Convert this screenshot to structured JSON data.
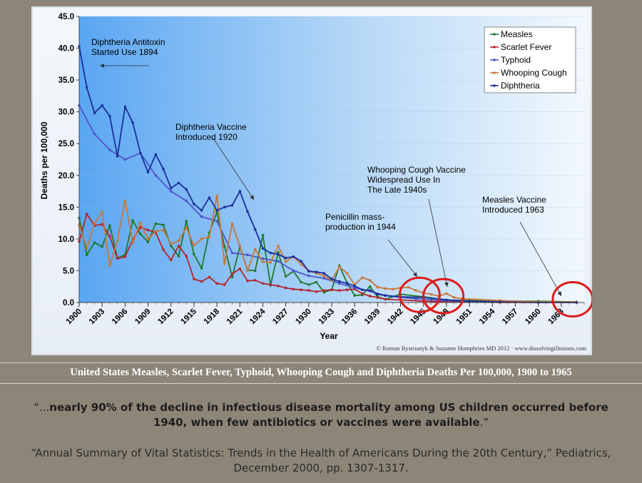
{
  "caption": "United States Measles, Scarlet Fever, Typhoid, Whooping Cough and Diphtheria Deaths Per 100,000, 1900 to 1965",
  "quote": {
    "open": "“...",
    "bold": "nearly 90% of the decline in infectious disease mortality among US children occurred before 1940, when few antibiotics or vaccines were available",
    "close": ".”"
  },
  "citation": "“Annual Summary of Vital Statistics: Trends in the Health of Americans During the 20th Century,” Pediatrics, December 2000, pp. 1307-1317.",
  "chart_data": {
    "type": "line",
    "ylabel": "Deaths per 100,000",
    "xlabel": "Year",
    "ylim": [
      0,
      45
    ],
    "xlim": [
      1900,
      1966
    ],
    "y_ticks": [
      "0.0",
      "5.0",
      "10.0",
      "15.0",
      "20.0",
      "25.0",
      "30.0",
      "35.0",
      "40.0",
      "45.0"
    ],
    "x_ticks": [
      "1900",
      "1903",
      "1906",
      "1909",
      "1912",
      "1915",
      "1918",
      "1921",
      "1924",
      "1927",
      "1930",
      "1933",
      "1936",
      "1939",
      "1942",
      "1945",
      "1948",
      "1951",
      "1954",
      "1957",
      "1960",
      "1963"
    ],
    "legend_position": "top-right",
    "credit": "© Roman Bystrianyk & Suzanne Humphries MD 2012 · www.dissolvingillusions.com",
    "series": [
      {
        "name": "Measles",
        "color": "#1e7a2e",
        "x": [
          1900,
          1901,
          1902,
          1903,
          1904,
          1905,
          1906,
          1907,
          1908,
          1909,
          1910,
          1911,
          1912,
          1913,
          1914,
          1915,
          1916,
          1917,
          1918,
          1919,
          1920,
          1921,
          1922,
          1923,
          1924,
          1925,
          1926,
          1927,
          1928,
          1929,
          1930,
          1931,
          1932,
          1933,
          1934,
          1935,
          1936,
          1937,
          1938,
          1939,
          1940,
          1942,
          1945,
          1948,
          1951,
          1955,
          1960,
          1965
        ],
        "y": [
          13.3,
          7.5,
          9.4,
          8.8,
          12.1,
          7.0,
          7.5,
          12.9,
          10.8,
          9.5,
          12.4,
          12.2,
          8.9,
          7.3,
          12.8,
          7.6,
          5.4,
          11.0,
          14.2,
          8.8,
          4.0,
          8.8,
          5.1,
          5.0,
          10.6,
          2.7,
          7.9,
          4.1,
          4.9,
          3.2,
          2.8,
          3.2,
          1.6,
          2.0,
          5.8,
          3.1,
          1.1,
          1.2,
          2.5,
          0.9,
          0.5,
          1.3,
          0.9,
          0.4,
          0.3,
          0.2,
          0.2,
          0.1
        ]
      },
      {
        "name": "Scarlet Fever",
        "color": "#b3262b",
        "x": [
          1900,
          1901,
          1902,
          1903,
          1904,
          1905,
          1906,
          1907,
          1908,
          1909,
          1910,
          1911,
          1912,
          1913,
          1914,
          1915,
          1916,
          1917,
          1918,
          1919,
          1920,
          1921,
          1922,
          1923,
          1924,
          1925,
          1926,
          1927,
          1928,
          1929,
          1930,
          1931,
          1932,
          1933,
          1934,
          1935,
          1936,
          1937,
          1938,
          1939,
          1940,
          1942,
          1945,
          1948,
          1951,
          1955,
          1960,
          1965
        ],
        "y": [
          9.6,
          13.9,
          12.1,
          12.3,
          10.4,
          6.9,
          7.2,
          9.9,
          11.8,
          11.4,
          11.0,
          8.3,
          6.7,
          8.9,
          7.3,
          3.7,
          3.3,
          4.0,
          3.0,
          2.8,
          4.5,
          5.3,
          3.4,
          3.5,
          3.0,
          2.8,
          2.6,
          2.3,
          2.1,
          2.0,
          1.9,
          1.7,
          1.9,
          2.0,
          1.9,
          2.0,
          2.1,
          1.4,
          1.0,
          0.8,
          0.5,
          0.4,
          0.2,
          0.1,
          0.1,
          0.0,
          0.0,
          0.0
        ]
      },
      {
        "name": "Typhoid",
        "color": "#4d55c8",
        "x": [
          1900,
          1902,
          1904,
          1906,
          1908,
          1910,
          1912,
          1914,
          1916,
          1918,
          1920,
          1922,
          1924,
          1926,
          1928,
          1930,
          1932,
          1934,
          1936,
          1938,
          1940,
          1942,
          1944,
          1946,
          1948,
          1950,
          1955,
          1960,
          1965
        ],
        "y": [
          31.0,
          26.5,
          24.0,
          22.5,
          23.5,
          20.0,
          17.5,
          16.0,
          13.5,
          12.8,
          7.8,
          7.5,
          6.9,
          6.5,
          5.0,
          4.2,
          3.8,
          3.0,
          2.3,
          1.8,
          1.1,
          0.8,
          0.6,
          0.4,
          0.3,
          0.2,
          0.1,
          0.0,
          0.0
        ]
      },
      {
        "name": "Whooping Cough",
        "color": "#c8773b",
        "x": [
          1900,
          1901,
          1902,
          1903,
          1904,
          1905,
          1906,
          1907,
          1908,
          1909,
          1910,
          1911,
          1912,
          1913,
          1914,
          1915,
          1916,
          1917,
          1918,
          1919,
          1920,
          1921,
          1922,
          1923,
          1924,
          1925,
          1926,
          1927,
          1928,
          1929,
          1930,
          1931,
          1932,
          1933,
          1934,
          1935,
          1936,
          1937,
          1938,
          1939,
          1940,
          1941,
          1942,
          1943,
          1944,
          1945,
          1946,
          1947,
          1948,
          1949,
          1950,
          1955,
          1960,
          1965
        ],
        "y": [
          12.2,
          8.5,
          12.5,
          14.2,
          5.8,
          9.7,
          16.0,
          9.4,
          12.5,
          10.0,
          11.2,
          11.4,
          9.2,
          9.7,
          11.8,
          9.0,
          10.0,
          10.3,
          16.8,
          6.1,
          12.4,
          8.9,
          5.0,
          8.4,
          6.4,
          6.3,
          8.9,
          6.4,
          7.2,
          6.0,
          5.0,
          4.6,
          4.2,
          3.5,
          5.6,
          4.6,
          2.8,
          3.9,
          3.5,
          2.4,
          2.2,
          2.1,
          2.3,
          2.4,
          1.9,
          1.5,
          1.3,
          1.0,
          1.4,
          0.8,
          0.6,
          0.3,
          0.1,
          0.1
        ]
      },
      {
        "name": "Diphtheria",
        "color": "#1b2e9a",
        "x": [
          1900,
          1901,
          1902,
          1903,
          1904,
          1905,
          1906,
          1907,
          1908,
          1909,
          1910,
          1911,
          1912,
          1913,
          1914,
          1915,
          1916,
          1917,
          1918,
          1919,
          1920,
          1921,
          1922,
          1923,
          1924,
          1925,
          1926,
          1927,
          1928,
          1929,
          1930,
          1931,
          1932,
          1933,
          1934,
          1935,
          1936,
          1937,
          1938,
          1939,
          1940,
          1942,
          1945,
          1948,
          1951,
          1955,
          1960,
          1965
        ],
        "y": [
          40.3,
          33.8,
          29.8,
          31.0,
          29.3,
          23.0,
          30.8,
          28.3,
          23.5,
          20.5,
          23.3,
          21.0,
          18.0,
          18.8,
          17.8,
          15.5,
          14.5,
          16.5,
          14.5,
          15.0,
          15.3,
          17.5,
          14.3,
          11.5,
          8.5,
          7.8,
          7.6,
          7.0,
          7.2,
          6.5,
          4.9,
          4.8,
          4.6,
          3.7,
          3.3,
          3.0,
          2.6,
          2.0,
          1.9,
          1.3,
          1.1,
          0.9,
          0.8,
          0.4,
          0.2,
          0.1,
          0.0,
          0.0
        ]
      }
    ],
    "annotations": [
      {
        "text": [
          "Diphtheria Antitoxin",
          "Started Use 1894"
        ]
      },
      {
        "text": [
          "Diphtheria Vaccine",
          "Introduced 1920"
        ]
      },
      {
        "text": [
          "Whooping Cough Vaccine",
          "Widespread Use In",
          "The Late 1940s"
        ]
      },
      {
        "text": [
          "Penicillin mass-",
          "production in 1944"
        ]
      },
      {
        "text": [
          "Measles Vaccine",
          "Introduced 1963"
        ]
      }
    ]
  }
}
